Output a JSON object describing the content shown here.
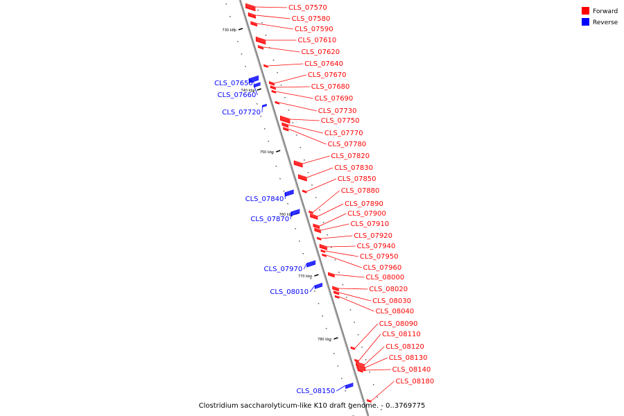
{
  "caption": "Clostridium saccharolyticum-like K10 draft genome. - 0..3769775",
  "legend": {
    "forward_label": "Forward",
    "reverse_label": "Reverse",
    "forward_color": "#ff0000",
    "reverse_color": "#0000ff"
  },
  "ticks": [
    "730 kbp",
    "740 kbp",
    "750 kbp",
    "760 kbp",
    "770 kbp",
    "780 kbp"
  ],
  "forward_genes": [
    "CLS_07570",
    "CLS_07580",
    "CLS_07590",
    "CLS_07610",
    "CLS_07620",
    "CLS_07640",
    "CLS_07670",
    "CLS_07680",
    "CLS_07690",
    "CLS_07730",
    "CLS_07750",
    "CLS_07770",
    "CLS_07780",
    "CLS_07820",
    "CLS_07830",
    "CLS_07850",
    "CLS_07880",
    "CLS_07890",
    "CLS_07900",
    "CLS_07910",
    "CLS_07920",
    "CLS_07940",
    "CLS_07950",
    "CLS_07960",
    "CLS_08000",
    "CLS_08020",
    "CLS_08030",
    "CLS_08040",
    "CLS_08090",
    "CLS_08110",
    "CLS_08120",
    "CLS_08130",
    "CLS_08140",
    "CLS_08180"
  ],
  "reverse_genes": [
    "CLS_07650",
    "CLS_07660",
    "CLS_07720",
    "CLS_07840",
    "CLS_07870",
    "CLS_07970",
    "CLS_08010",
    "CLS_08150"
  ]
}
